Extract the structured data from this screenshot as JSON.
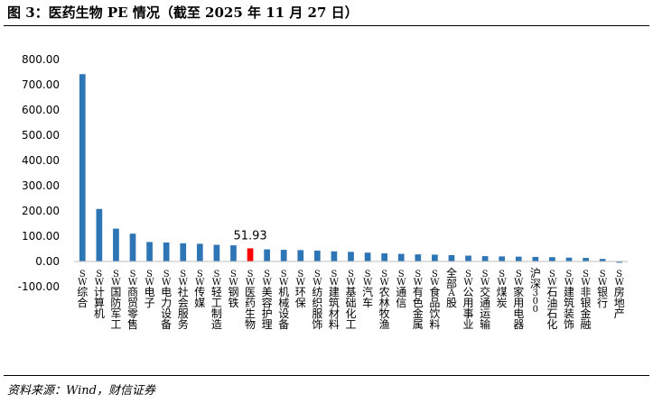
{
  "figure": {
    "title": "图 3：医药生物 PE 情况（截至 2025 年 11 月 27 日）",
    "source": "资料来源：Wind，财信证券"
  },
  "colors": {
    "bar": "#2e75b6",
    "highlight": "#ff0000",
    "axis": "#bfbfbf",
    "text": "#000000"
  },
  "chart_data": {
    "type": "bar",
    "title": "",
    "xlabel": "",
    "ylabel": "",
    "ylim": [
      -100,
      800
    ],
    "yticks": [
      -100,
      0,
      100,
      200,
      300,
      400,
      500,
      600,
      700,
      800
    ],
    "ytick_labels": [
      "-100.00",
      "0.00",
      "100.00",
      "200.00",
      "300.00",
      "400.00",
      "500.00",
      "600.00",
      "700.00",
      "800.00"
    ],
    "grid": false,
    "legend": "none",
    "categories": [
      "SW综合",
      "SW计算机",
      "SW国防军工",
      "SW商贸零售",
      "SW电子",
      "SW电力设备",
      "SW社会服务",
      "SW传媒",
      "SW轻工制造",
      "SW钢铁",
      "SW医药生物",
      "SW美容护理",
      "SW机械设备",
      "SW环保",
      "SW纺织服饰",
      "SW建筑材料",
      "SW基础化工",
      "SW汽车",
      "SW农林牧渔",
      "SW通信",
      "SW有色金属",
      "SW食品饮料",
      "全部A股",
      "SW公用事业",
      "SW交通运输",
      "SW煤炭",
      "SW家用电器",
      "沪深300",
      "SW石油石化",
      "SW建筑装饰",
      "SW非银金融",
      "SW银行",
      "SW房地产"
    ],
    "values": [
      742,
      208,
      130,
      110,
      77,
      75,
      72,
      70,
      66,
      64,
      51.93,
      48,
      46,
      45,
      43,
      40,
      38,
      35,
      32,
      30,
      28,
      27,
      25,
      23,
      21,
      20,
      19,
      18,
      17,
      15,
      14,
      10,
      -5
    ],
    "highlight_index": 10,
    "data_labels": [
      {
        "index": 10,
        "text": "51.93"
      }
    ]
  }
}
